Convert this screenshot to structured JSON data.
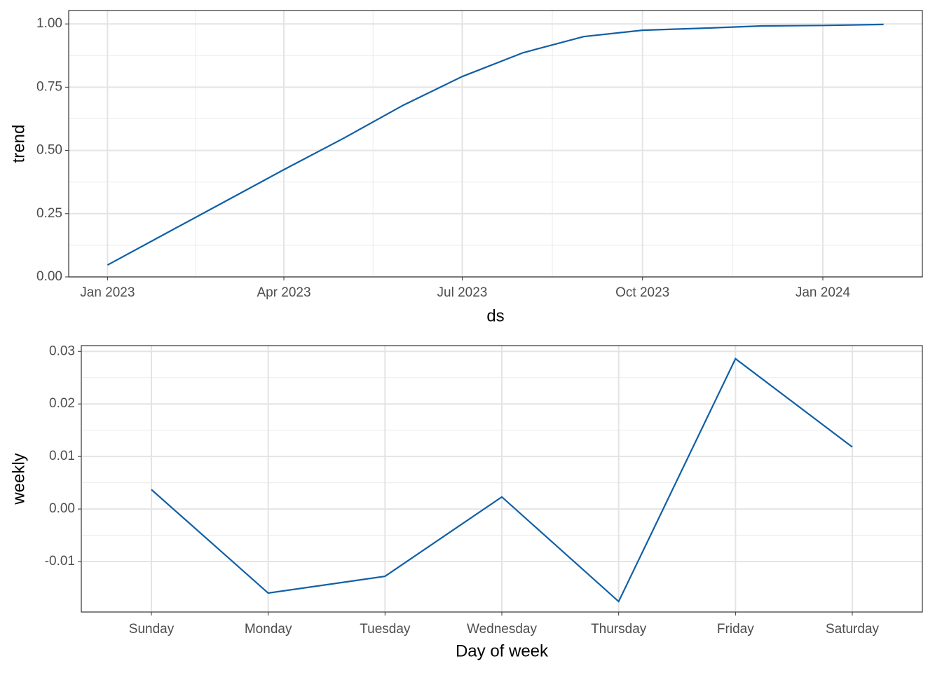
{
  "chart_data": [
    {
      "type": "line",
      "x_label": "ds",
      "y_label": "trend",
      "x": [
        "2023-01",
        "2023-02",
        "2023-03",
        "2023-04",
        "2023-05",
        "2023-06",
        "2023-07",
        "2023-08",
        "2023-09",
        "2023-10",
        "2023-11",
        "2023-12",
        "2024-01",
        "2024-02"
      ],
      "values": [
        0.047,
        0.177,
        0.294,
        0.424,
        0.546,
        0.679,
        0.792,
        0.886,
        0.95,
        0.975,
        0.983,
        0.992,
        0.994,
        0.998
      ],
      "color": "#0f5fa6",
      "xlim": [
        "2023-01",
        "2024-02"
      ],
      "xticks": [
        {
          "value": "2023-01",
          "label": "Jan 2023"
        },
        {
          "value": "2023-04",
          "label": "Apr 2023"
        },
        {
          "value": "2023-07",
          "label": "Jul 2023"
        },
        {
          "value": "2023-10",
          "label": "Oct 2023"
        },
        {
          "value": "2024-01",
          "label": "Jan 2024"
        }
      ],
      "ylim": [
        0,
        1.053
      ],
      "yticks": [
        {
          "value": 0,
          "label": "0.00"
        },
        0.25,
        {
          "value": 0.5,
          "label": "0.50"
        },
        0.75,
        {
          "value": 1,
          "label": "1.00"
        }
      ],
      "grid": true
    },
    {
      "type": "line",
      "x_label": "Day of week",
      "y_label": "weekly",
      "categories": [
        "Sunday",
        "Monday",
        "Tuesday",
        "Wednesday",
        "Thursday",
        "Friday",
        "Saturday"
      ],
      "values": [
        0.0037,
        -0.016,
        -0.0128,
        0.0023,
        -0.0176,
        0.0286,
        0.0118
      ],
      "color": "#0f5fa6",
      "ylim": [
        -0.0196,
        0.0311
      ],
      "yticks": [
        -0.01,
        {
          "value": 0,
          "label": "0.00"
        },
        0.01,
        0.02,
        0.03
      ],
      "grid": true
    }
  ]
}
